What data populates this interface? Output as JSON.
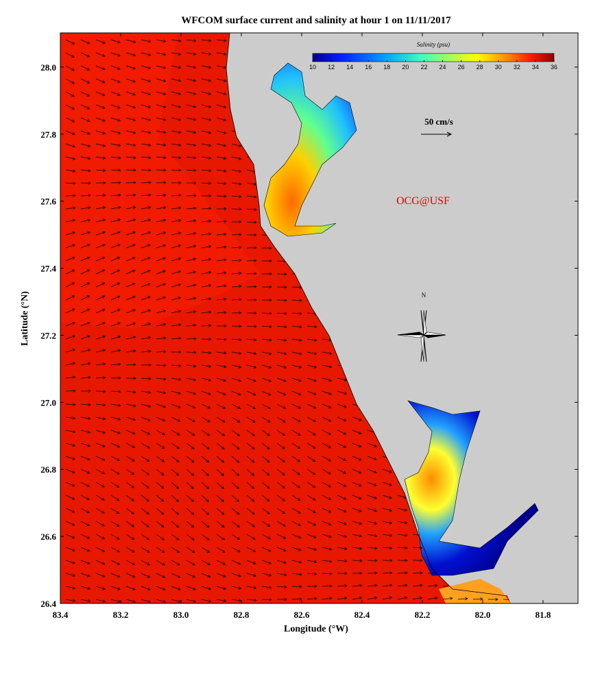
{
  "map": {
    "title": "WFCOM surface current and salinity at hour 1 on 11/11/2017",
    "xlabel": "Longitude (°W)",
    "ylabel": "Latitude (°N)",
    "xlim": [
      83.4,
      81.684
    ],
    "ylim": [
      26.4,
      28.102
    ],
    "xticks": [
      83.4,
      83.2,
      {
        "value": 83,
        "label": "83.0"
      },
      82.8,
      82.6,
      82.4,
      82.2,
      {
        "value": 82,
        "label": "82.0"
      },
      81.8
    ],
    "yticks": [
      26.4,
      26.6,
      26.8,
      {
        "value": 27,
        "label": "27.0"
      },
      27.2,
      27.4,
      27.6,
      27.8,
      {
        "value": 28,
        "label": "28.0"
      }
    ],
    "colorbar": {
      "label": "Salinity (psu)",
      "lim": [
        10,
        36
      ],
      "ticks": [
        10,
        12,
        14,
        16,
        18,
        20,
        22,
        24,
        26,
        28,
        30,
        32,
        34,
        36
      ]
    },
    "scale_label": "50 cm/s",
    "credit": "OCG@USF",
    "compass_label": "N"
  }
}
